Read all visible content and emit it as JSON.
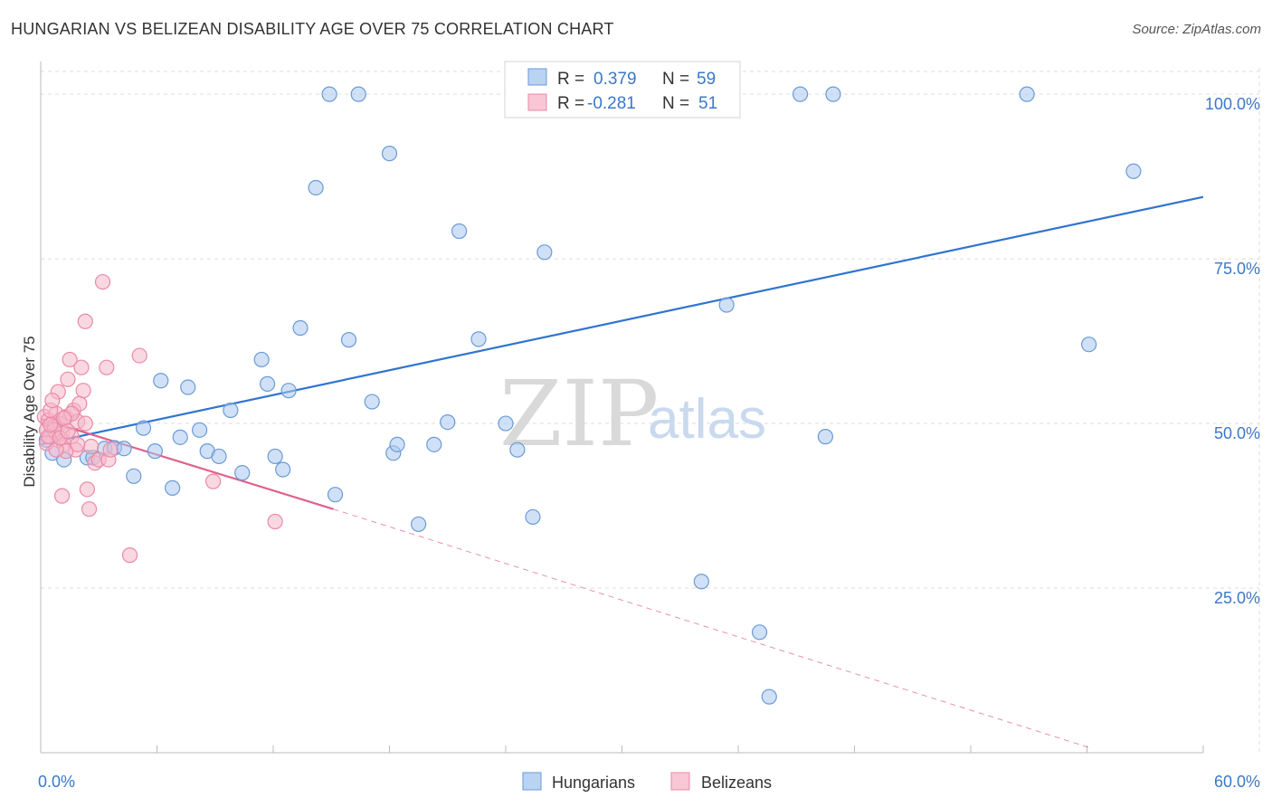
{
  "header": {
    "title": "HUNGARIAN VS BELIZEAN DISABILITY AGE OVER 75 CORRELATION CHART",
    "source": "Source: ZipAtlas.com"
  },
  "watermark": {
    "zip": "ZIP",
    "atlas": "atlas"
  },
  "colors": {
    "blue_fill": "#a9c8f0",
    "blue_stroke": "#6b9ad6",
    "blue_line": "#2f74d0",
    "pink_fill": "#f6b8cb",
    "pink_stroke": "#ea8aa8",
    "pink_line": "#e0608e",
    "grid": "#dddddd",
    "tick_label": "#3a78c9"
  },
  "legend": {
    "r_label": "R =",
    "n_label": "N =",
    "rows": [
      {
        "r": "0.379",
        "n": "59",
        "series": "Hungarians"
      },
      {
        "r": "-0.281",
        "n": "51",
        "series": "Belizeans"
      }
    ]
  },
  "chart_data": {
    "type": "scatter",
    "title": "HUNGARIAN VS BELIZEAN DISABILITY AGE OVER 75 CORRELATION CHART",
    "xlabel": "",
    "ylabel": "Disability Age Over 75",
    "xlim": [
      0,
      60
    ],
    "ylim": [
      0,
      104
    ],
    "x_tick_labels": [
      "0.0%",
      "60.0%"
    ],
    "y_ticks": [
      25,
      50,
      75,
      100
    ],
    "y_tick_labels": [
      "25.0%",
      "50.0%",
      "75.0%",
      "100.0%"
    ],
    "grid": true,
    "legend_position": "top-center",
    "series": [
      {
        "name": "Hungarians",
        "r": 0.379,
        "n": 59,
        "trend": {
          "x": [
            0,
            60
          ],
          "y": [
            46.8,
            84.4
          ],
          "dashed_from": null
        },
        "points": [
          [
            0.3,
            47.5
          ],
          [
            0.6,
            45.5
          ],
          [
            1.2,
            44.5
          ],
          [
            2.4,
            44.8
          ],
          [
            3.3,
            46.2
          ],
          [
            3.8,
            46.3
          ],
          [
            4.3,
            46.2
          ],
          [
            4.8,
            42.0
          ],
          [
            5.3,
            49.3
          ],
          [
            5.9,
            45.8
          ],
          [
            6.2,
            56.5
          ],
          [
            7.2,
            47.9
          ],
          [
            7.6,
            55.5
          ],
          [
            6.8,
            40.2
          ],
          [
            8.2,
            49.0
          ],
          [
            8.6,
            45.8
          ],
          [
            9.2,
            45.0
          ],
          [
            9.8,
            52.0
          ],
          [
            10.4,
            42.5
          ],
          [
            11.4,
            59.7
          ],
          [
            11.7,
            56.0
          ],
          [
            12.1,
            45.0
          ],
          [
            12.5,
            43.0
          ],
          [
            12.8,
            55.0
          ],
          [
            13.4,
            64.5
          ],
          [
            14.2,
            85.8
          ],
          [
            14.9,
            100.0
          ],
          [
            15.2,
            39.2
          ],
          [
            15.9,
            62.7
          ],
          [
            16.4,
            100.0
          ],
          [
            17.1,
            53.3
          ],
          [
            18.0,
            91.0
          ],
          [
            18.2,
            45.5
          ],
          [
            18.4,
            46.8
          ],
          [
            19.5,
            34.7
          ],
          [
            20.3,
            46.8
          ],
          [
            21.0,
            50.2
          ],
          [
            21.6,
            79.2
          ],
          [
            22.6,
            62.8
          ],
          [
            24.0,
            50.0
          ],
          [
            24.6,
            46.0
          ],
          [
            25.3,
            98.2
          ],
          [
            25.4,
            35.8
          ],
          [
            26.0,
            76.0
          ],
          [
            28.1,
            100.0
          ],
          [
            29.4,
            100.0
          ],
          [
            34.1,
            26.0
          ],
          [
            35.4,
            68.0
          ],
          [
            37.1,
            18.3
          ],
          [
            37.6,
            8.5
          ],
          [
            39.2,
            100.0
          ],
          [
            40.5,
            48.0
          ],
          [
            40.9,
            100.0
          ],
          [
            50.9,
            100.0
          ],
          [
            54.1,
            62.0
          ],
          [
            56.4,
            88.3
          ],
          [
            1.0,
            50.0
          ],
          [
            0.8,
            48.5
          ],
          [
            2.7,
            44.8
          ]
        ]
      },
      {
        "name": "Belizeans",
        "r": -0.281,
        "n": 51,
        "trend": {
          "x": [
            0,
            15.1,
            54.1
          ],
          "y": [
            50.7,
            37.0,
            0.8
          ],
          "dashed_from": 15.1
        },
        "points": [
          [
            0.2,
            51.0
          ],
          [
            0.3,
            49.0
          ],
          [
            0.4,
            50.5
          ],
          [
            0.5,
            48.0
          ],
          [
            0.6,
            50.0
          ],
          [
            0.7,
            49.5
          ],
          [
            0.8,
            51.5
          ],
          [
            0.9,
            47.5
          ],
          [
            1.0,
            50.0
          ],
          [
            1.1,
            48.5
          ],
          [
            0.3,
            47.0
          ],
          [
            0.5,
            52.0
          ],
          [
            0.7,
            49.0
          ],
          [
            1.2,
            46.8
          ],
          [
            1.3,
            51.0
          ],
          [
            1.4,
            56.7
          ],
          [
            1.5,
            59.7
          ],
          [
            1.6,
            48.0
          ],
          [
            1.7,
            52.0
          ],
          [
            1.8,
            46.0
          ],
          [
            1.9,
            50.3
          ],
          [
            2.0,
            53.0
          ],
          [
            2.1,
            58.5
          ],
          [
            2.2,
            55.0
          ],
          [
            2.3,
            50.0
          ],
          [
            2.4,
            40.0
          ],
          [
            2.5,
            37.0
          ],
          [
            2.3,
            65.5
          ],
          [
            2.8,
            44.0
          ],
          [
            3.0,
            44.5
          ],
          [
            3.2,
            71.5
          ],
          [
            3.4,
            58.5
          ],
          [
            3.5,
            44.5
          ],
          [
            3.6,
            46.0
          ],
          [
            4.6,
            30.0
          ],
          [
            5.1,
            60.3
          ],
          [
            8.9,
            41.2
          ],
          [
            12.1,
            35.1
          ],
          [
            1.1,
            39.0
          ],
          [
            0.9,
            54.8
          ],
          [
            1.3,
            45.8
          ],
          [
            0.6,
            53.5
          ],
          [
            1.6,
            51.5
          ],
          [
            0.4,
            48.0
          ],
          [
            0.8,
            46.0
          ],
          [
            1.0,
            47.8
          ],
          [
            1.2,
            50.8
          ],
          [
            0.5,
            49.8
          ],
          [
            2.6,
            46.5
          ],
          [
            1.9,
            46.8
          ],
          [
            1.4,
            48.8
          ]
        ]
      }
    ]
  }
}
